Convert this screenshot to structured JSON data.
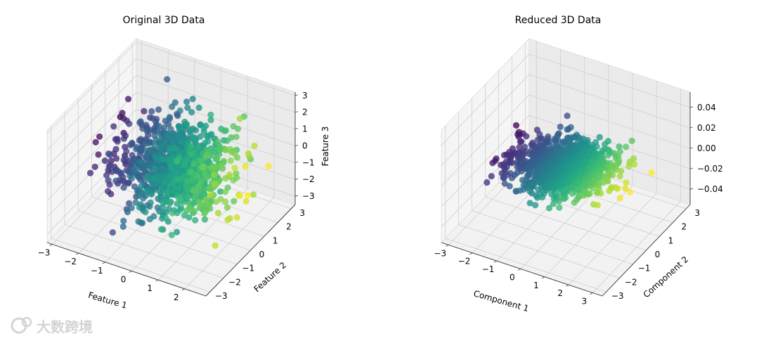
{
  "figure": {
    "watermark": "大数跨境"
  },
  "chart_data": [
    {
      "type": "scatter3d",
      "title": "Original 3D Data",
      "xlabel": "Feature 1",
      "ylabel": "Feature 2",
      "zlabel": "Feature 3",
      "x_ticks": [
        "−3",
        "−2",
        "−1",
        "0",
        "1",
        "2"
      ],
      "y_ticks": [
        "−3",
        "−2",
        "−1",
        "0",
        "1",
        "2",
        "3"
      ],
      "z_ticks": [
        "−3",
        "−2",
        "−1",
        "0",
        "1",
        "2",
        "3"
      ],
      "xlim": [
        -3.2,
        2.8
      ],
      "ylim": [
        -3.3,
        3.3
      ],
      "zlim": [
        -3.5,
        3.2
      ],
      "colormap": "viridis",
      "color_by": "x",
      "n_points": 1000,
      "distribution": "standard normal",
      "grid": true
    },
    {
      "type": "scatter3d",
      "title": "Reduced 3D Data",
      "xlabel": "Component 1",
      "ylabel": "Component 2",
      "zlabel": "",
      "x_ticks": [
        "−3",
        "−2",
        "−1",
        "0",
        "1",
        "2",
        "3"
      ],
      "y_ticks": [
        "−3",
        "−2",
        "−1",
        "0",
        "1",
        "2",
        "3"
      ],
      "z_ticks": [
        "−0.04",
        "−0.02",
        "0.00",
        "0.02",
        "0.04"
      ],
      "xlim": [
        -3.3,
        3.4
      ],
      "ylim": [
        -3.3,
        3.3
      ],
      "zlim": [
        -0.055,
        0.055
      ],
      "colormap": "viridis",
      "color_by": "x",
      "n_points": 1000,
      "distribution": "standard normal, z = 0",
      "grid": true
    }
  ]
}
